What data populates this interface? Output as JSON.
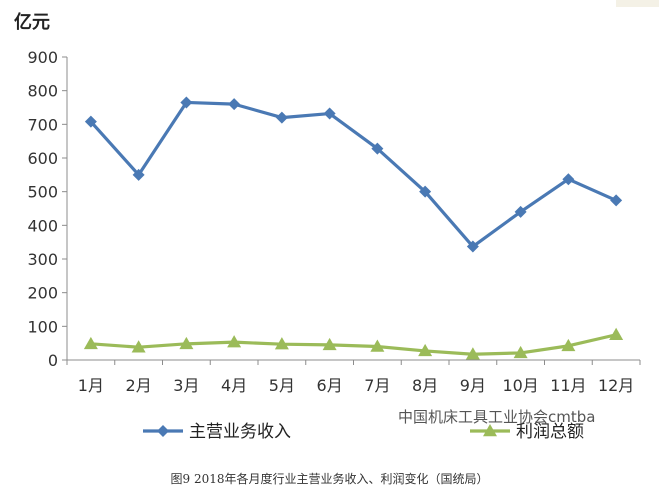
{
  "chart_data": {
    "type": "line",
    "unit_label": "亿元",
    "categories": [
      "1月",
      "2月",
      "3月",
      "4月",
      "5月",
      "6月",
      "7月",
      "8月",
      "9月",
      "10月",
      "11月",
      "12月"
    ],
    "series": [
      {
        "name": "主营业务收入",
        "color": "#4a79b4",
        "marker": "diamond",
        "values": [
          708,
          550,
          765,
          760,
          720,
          732,
          628,
          500,
          337,
          440,
          537,
          474
        ]
      },
      {
        "name": "利润总额",
        "color": "#9bbb59",
        "marker": "triangle",
        "values": [
          48,
          38,
          48,
          53,
          47,
          45,
          40,
          27,
          17,
          21,
          42,
          75
        ]
      }
    ],
    "ylim": [
      0,
      900
    ],
    "yticks": [
      0,
      100,
      200,
      300,
      400,
      500,
      600,
      700,
      800,
      900
    ],
    "grid": false,
    "legend_position": "bottom"
  },
  "watermark": "中国机床工具工业协会cmtba",
  "caption": "图9 2018年各月度行业主营业务收入、利润变化（国统局）"
}
